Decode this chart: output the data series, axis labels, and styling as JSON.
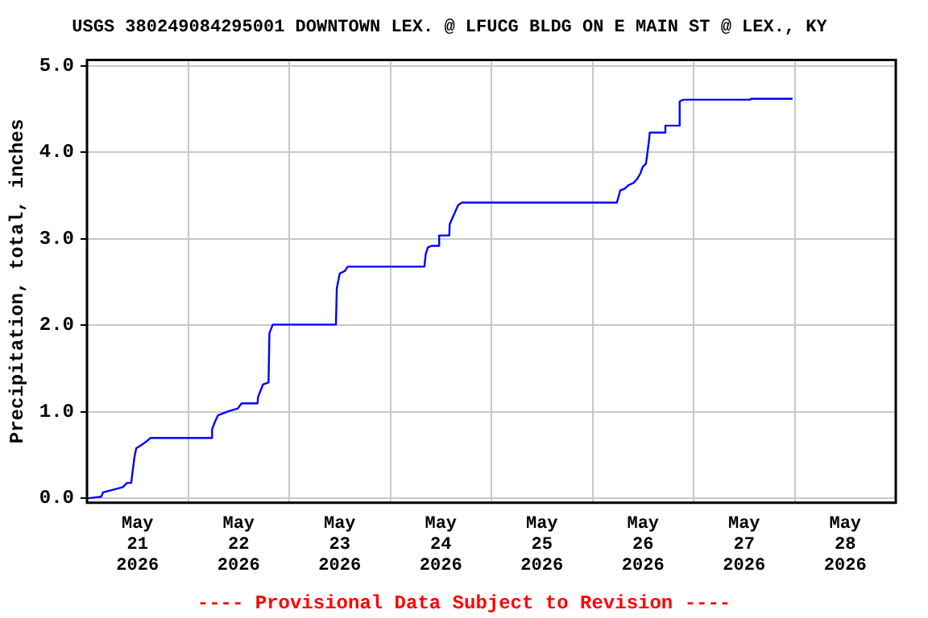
{
  "chart_data": {
    "type": "line",
    "title": "USGS 380249084295001 DOWNTOWN LEX. @ LFUCG BLDG ON E MAIN ST @ LEX., KY",
    "ylabel": "Precipitation, total, inches",
    "annotations": [
      "---- Provisional Data Subject to Revision ----"
    ],
    "x": [
      "2026-05-21T00:00",
      "2026-05-21T03:24",
      "2026-05-21T03:48",
      "2026-05-21T06:12",
      "2026-05-21T08:30",
      "2026-05-21T09:30",
      "2026-05-21T10:30",
      "2026-05-21T10:48",
      "2026-05-21T11:18",
      "2026-05-21T11:42",
      "2026-05-21T13:00",
      "2026-05-21T14:24",
      "2026-05-21T15:06",
      "2026-05-22T05:30",
      "2026-05-22T05:42",
      "2026-05-22T06:24",
      "2026-05-22T07:06",
      "2026-05-22T09:42",
      "2026-05-22T11:48",
      "2026-05-22T12:42",
      "2026-05-22T16:30",
      "2026-05-22T16:36",
      "2026-05-22T17:48",
      "2026-05-22T19:06",
      "2026-05-22T19:18",
      "2026-05-22T20:06",
      "2026-05-23T11:06",
      "2026-05-23T11:18",
      "2026-05-23T12:00",
      "2026-05-23T13:12",
      "2026-05-23T13:54",
      "2026-05-24T08:06",
      "2026-05-24T08:24",
      "2026-05-24T08:54",
      "2026-05-24T09:48",
      "2026-05-24T11:30",
      "2026-05-24T11:36",
      "2026-05-24T14:00",
      "2026-05-24T14:06",
      "2026-05-24T15:00",
      "2026-05-24T16:06",
      "2026-05-24T17:00",
      "2026-05-26T05:48",
      "2026-05-26T06:36",
      "2026-05-26T07:36",
      "2026-05-26T08:30",
      "2026-05-26T09:48",
      "2026-05-26T10:42",
      "2026-05-26T11:24",
      "2026-05-26T11:54",
      "2026-05-26T12:42",
      "2026-05-26T13:00",
      "2026-05-26T13:24",
      "2026-05-26T13:36",
      "2026-05-26T17:12",
      "2026-05-26T17:18",
      "2026-05-26T20:36",
      "2026-05-26T20:42",
      "2026-05-26T21:36",
      "2026-05-27T13:30",
      "2026-05-27T13:36",
      "2026-05-27T23:30"
    ],
    "series": [
      {
        "color": "#0000ff",
        "values": [
          0.0,
          0.02,
          0.07,
          0.1,
          0.13,
          0.18,
          0.18,
          0.3,
          0.49,
          0.58,
          0.62,
          0.67,
          0.7,
          0.7,
          0.8,
          0.89,
          0.96,
          1.01,
          1.04,
          1.1,
          1.1,
          1.17,
          1.32,
          1.34,
          1.91,
          2.01,
          2.01,
          2.43,
          2.6,
          2.63,
          2.68,
          2.68,
          2.82,
          2.9,
          2.92,
          2.92,
          3.04,
          3.04,
          3.17,
          3.27,
          3.39,
          3.42,
          3.42,
          3.56,
          3.58,
          3.62,
          3.65,
          3.7,
          3.76,
          3.83,
          3.87,
          3.98,
          4.13,
          4.23,
          4.23,
          4.31,
          4.31,
          4.59,
          4.61,
          4.61,
          4.62,
          4.62
        ]
      }
    ],
    "xlim": [
      "2026-05-21T00:00",
      "2026-05-29T00:00"
    ],
    "xticks": [
      {
        "value": "2026-05-21T12:00",
        "label": "May\n21\n2026"
      },
      {
        "value": "2026-05-22T00:00",
        "label": null
      },
      {
        "value": "2026-05-22T12:00",
        "label": "May\n22\n2026"
      },
      {
        "value": "2026-05-23T00:00",
        "label": null
      },
      {
        "value": "2026-05-23T12:00",
        "label": "May\n23\n2026"
      },
      {
        "value": "2026-05-24T00:00",
        "label": null
      },
      {
        "value": "2026-05-24T12:00",
        "label": "May\n24\n2026"
      },
      {
        "value": "2026-05-25T00:00",
        "label": null
      },
      {
        "value": "2026-05-25T12:00",
        "label": "May\n25\n2026"
      },
      {
        "value": "2026-05-26T00:00",
        "label": null
      },
      {
        "value": "2026-05-26T12:00",
        "label": "May\n26\n2026"
      },
      {
        "value": "2026-05-27T00:00",
        "label": null
      },
      {
        "value": "2026-05-27T12:00",
        "label": "May\n27\n2026"
      },
      {
        "value": "2026-05-28T00:00",
        "label": null
      },
      {
        "value": "2026-05-28T12:00",
        "label": "May\n28\n2026"
      }
    ],
    "ylim": [
      -0.05,
      5.07
    ],
    "yticks": [
      {
        "value": 0,
        "label": "0.0"
      },
      {
        "value": 1,
        "label": "1.0"
      },
      {
        "value": 2,
        "label": "2.0"
      },
      {
        "value": 3,
        "label": "3.0"
      },
      {
        "value": 4,
        "label": "4.0"
      },
      {
        "value": 5,
        "label": "5.0"
      }
    ],
    "grid": true,
    "marker": "none",
    "line_style": "solid"
  }
}
